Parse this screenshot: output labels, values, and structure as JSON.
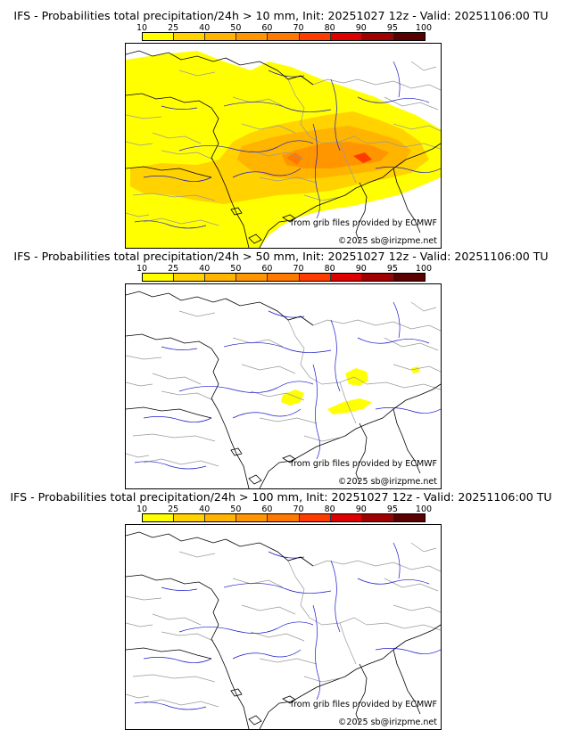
{
  "panels": [
    {
      "title": "IFS - Probabilities total precipitation/24h > 10 mm, Init: 20251027 12z - Valid: 20251106:00 TU",
      "coverage": "heavy",
      "credit_source": "from grib files provided by ECMWF",
      "credit_copyright": "©2025 sb@irizpme.net"
    },
    {
      "title": "IFS - Probabilities total precipitation/24h > 50 mm, Init: 20251027 12z - Valid: 20251106:00 TU",
      "coverage": "light",
      "credit_source": "from grib files provided by ECMWF",
      "credit_copyright": "©2025 sb@irizpme.net"
    },
    {
      "title": "IFS - Probabilities total precipitation/24h > 100 mm, Init: 20251027 12z - Valid: 20251106:00 TU",
      "coverage": "none",
      "credit_source": "from grib files provided by ECMWF",
      "credit_copyright": "©2025 sb@irizpme.net"
    }
  ],
  "colorbar": {
    "ticks": [
      "10",
      "25",
      "40",
      "50",
      "60",
      "70",
      "80",
      "90",
      "95",
      "100"
    ],
    "colors": [
      "#ffff00",
      "#ffd200",
      "#ffb400",
      "#ff9600",
      "#ff7800",
      "#ff3c00",
      "#dc0000",
      "#a00000",
      "#5a0000"
    ]
  },
  "map_colors": {
    "coast": "#000000",
    "borders": "#999999",
    "rivers": "#1a1acc"
  }
}
